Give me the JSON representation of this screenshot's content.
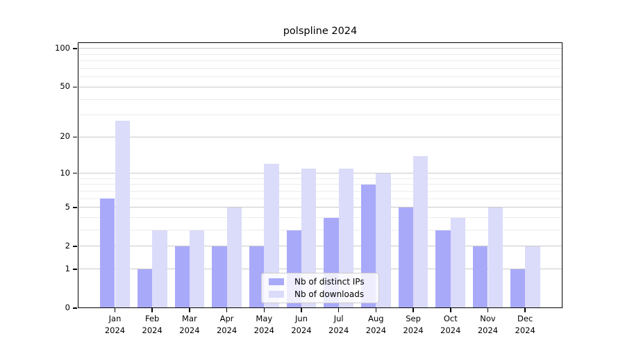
{
  "title": "polspline 2024",
  "chart_data": {
    "type": "bar",
    "title": "polspline 2024",
    "scale": "log1p",
    "grid": true,
    "ylim": [
      0,
      112
    ],
    "categories": [
      "Jan",
      "Feb",
      "Mar",
      "Apr",
      "May",
      "Jun",
      "Jul",
      "Aug",
      "Sep",
      "Oct",
      "Nov",
      "Dec"
    ],
    "year_label": "2024",
    "series": [
      {
        "name": "Nb of distinct IPs",
        "color": "#a9a9fa",
        "values": [
          6,
          1,
          2,
          2,
          2,
          3,
          4,
          8,
          5,
          3,
          2,
          1
        ]
      },
      {
        "name": "Nb of downloads",
        "color": "#dbdbfa",
        "values": [
          27,
          3,
          3,
          5,
          12,
          11,
          11,
          10,
          14,
          4,
          5,
          2
        ]
      }
    ],
    "y_major_ticks": [
      0,
      1,
      2,
      5,
      10,
      20,
      50,
      100
    ],
    "y_minor_gridlines": [
      3,
      4,
      6,
      7,
      8,
      9,
      30,
      40,
      60,
      70,
      80,
      90
    ],
    "legend_position": "lower center",
    "colors": {
      "major_grid": "#c9c9c9",
      "minor_grid": "#ececec",
      "axis": "#000000",
      "legend_border": "#cccccc"
    }
  }
}
